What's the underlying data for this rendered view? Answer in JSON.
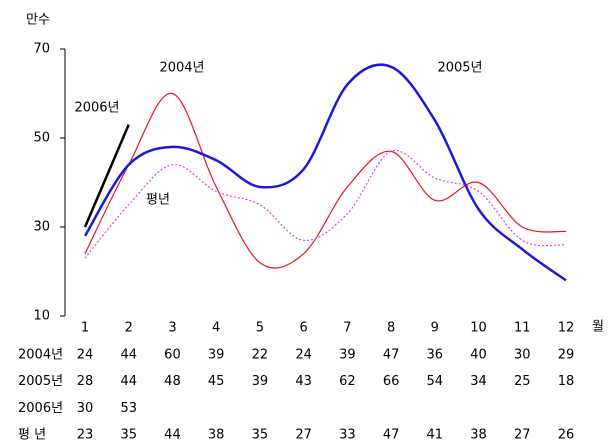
{
  "chart_data": {
    "type": "line",
    "y_unit": "만수",
    "x_unit": "월",
    "categories": [
      "1",
      "2",
      "3",
      "4",
      "5",
      "6",
      "7",
      "8",
      "9",
      "10",
      "11",
      "12"
    ],
    "series": [
      {
        "name": "2004년",
        "color": "#e8141e",
        "values": [
          24,
          44,
          60,
          39,
          22,
          24,
          39,
          47,
          36,
          40,
          30,
          29
        ]
      },
      {
        "name": "2005년",
        "color": "#1a1adc",
        "values": [
          28,
          44,
          48,
          45,
          39,
          43,
          62,
          66,
          54,
          34,
          25,
          18
        ]
      },
      {
        "name": "2006년",
        "color": "#000000",
        "values": [
          30,
          53,
          null,
          null,
          null,
          null,
          null,
          null,
          null,
          null,
          null,
          null
        ]
      },
      {
        "name": "평년",
        "color": "#e040e0",
        "values": [
          23,
          35,
          44,
          38,
          35,
          27,
          33,
          47,
          41,
          38,
          27,
          26
        ]
      }
    ],
    "row_labels": [
      "2004년",
      "2005년",
      "2006년",
      "평 년"
    ],
    "ylim": [
      10,
      70
    ],
    "yticks": [
      10,
      30,
      50,
      70
    ]
  }
}
